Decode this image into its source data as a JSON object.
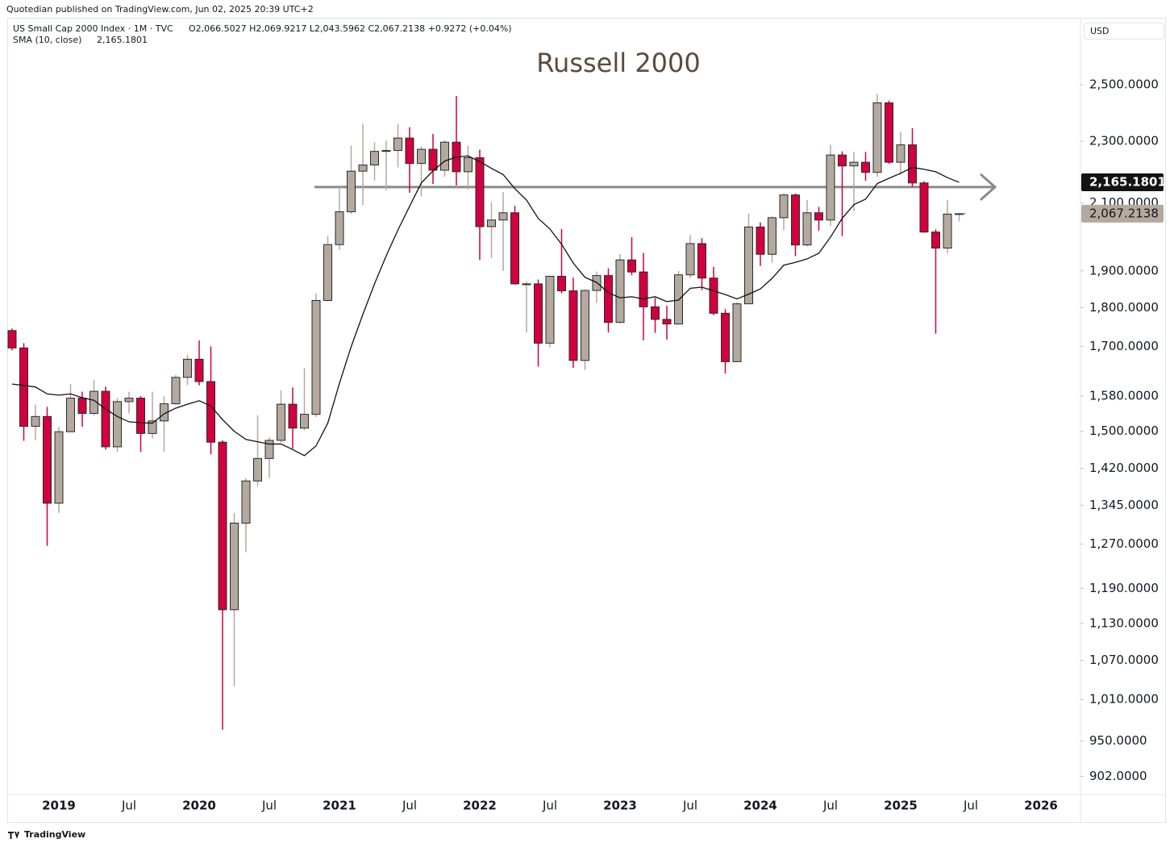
{
  "header": {
    "published": "Quotedian published on TradingView.com, Jun 02, 2025 20:39 UTC+2",
    "symbol": "US Small Cap 2000 Index · 1M · TVC",
    "ohlc_text": "O2,066.5027 H2,069.9217 L2,043.5962 C2,067.2138 +0.9272 (+0.04%)",
    "sma_text": "SMA (10, close)",
    "sma_value_text": "2,165.1801",
    "currency": "USD",
    "brand": "TradingView"
  },
  "chart_data": {
    "type": "candlestick",
    "title": "Russell 2000",
    "log_scale": true,
    "up_color": "#b3a99e",
    "down_color": "#d1003f",
    "sma_color": "#111111",
    "hline_color": "#8a8a8a",
    "categories": [
      null,
      null,
      null,
      null,
      "2019",
      null,
      null,
      null,
      null,
      null,
      "Jul",
      null,
      null,
      null,
      null,
      null,
      "2020",
      null,
      null,
      null,
      null,
      null,
      "Jul",
      null,
      null,
      null,
      null,
      null,
      "2021",
      null,
      null,
      null,
      null,
      null,
      "Jul",
      null,
      null,
      null,
      null,
      null,
      "2022",
      null,
      null,
      null,
      null,
      null,
      "Jul",
      null,
      null,
      null,
      null,
      null,
      "2023",
      null,
      null,
      null,
      null,
      null,
      "Jul",
      null,
      null,
      null,
      null,
      null,
      "2024",
      null,
      null,
      null,
      null,
      null,
      "Jul",
      null,
      null,
      null,
      null,
      null,
      "2025",
      null,
      null,
      null,
      null,
      null,
      "Jul",
      null,
      null,
      null,
      null,
      null,
      "2026"
    ],
    "open": [
      1740,
      1696,
      1511,
      1533,
      1349,
      1499,
      1575,
      1540,
      1591,
      1466,
      1567,
      1575,
      1495,
      1523,
      1562,
      1624,
      1668,
      1614,
      1476,
      1153,
      1310,
      1394,
      1441,
      1480,
      1561,
      1507,
      1538,
      1819,
      1975,
      2073,
      2201,
      2221,
      2266,
      2269,
      2311,
      2226,
      2273,
      2204,
      2297,
      2199,
      2245,
      2028,
      2048,
      2070,
      1864,
      1864,
      1708,
      1885,
      1845,
      1665,
      1846,
      1887,
      1761,
      1931,
      1897,
      1802,
      1769,
      1757,
      1889,
      1978,
      1880,
      1785,
      1662,
      1810,
      2027,
      1947,
      2055,
      2125,
      1974,
      2070,
      2048,
      2254,
      2218,
      2230,
      2197,
      2434,
      2230,
      2288,
      2163,
      2012,
      1965,
      2066.5027,
      null,
      null,
      null,
      null,
      null,
      null,
      null
    ],
    "high": [
      1745,
      1708,
      1560,
      1555,
      1510,
      1608,
      1590,
      1618,
      1602,
      1575,
      1590,
      1580,
      1590,
      1580,
      1630,
      1679,
      1715,
      1700,
      1480,
      1330,
      1400,
      1536,
      1487,
      1593,
      1600,
      1646,
      1838,
      2000,
      2155,
      2285,
      2360,
      2296,
      2302,
      2360,
      2348,
      2283,
      2325,
      2303,
      2459,
      2285,
      2272,
      2102,
      2134,
      2091,
      1870,
      1876,
      1886,
      2021,
      1881,
      1849,
      1898,
      1907,
      1948,
      1997,
      1951,
      1826,
      1805,
      1900,
      2003,
      1994,
      1911,
      1796,
      1814,
      2067,
      2041,
      2059,
      2130,
      2130,
      2109,
      2088,
      2289,
      2266,
      2265,
      2264,
      2466,
      2442,
      2332,
      2345,
      2168,
      2020,
      2110,
      2069.9217,
      null,
      null,
      null,
      null,
      null,
      null,
      null
    ],
    "low": [
      1690,
      1479,
      1480,
      1267,
      1330,
      1498,
      1510,
      1535,
      1460,
      1455,
      1540,
      1455,
      1484,
      1455,
      1560,
      1606,
      1605,
      1450,
      966,
      1030,
      1255,
      1383,
      1400,
      1475,
      1462,
      1502,
      1532,
      1816,
      1960,
      2066,
      2094,
      2170,
      2140,
      2213,
      2132,
      2120,
      2160,
      2183,
      2155,
      2142,
      1931,
      1936,
      1900,
      1862,
      1735,
      1650,
      1698,
      1838,
      1647,
      1642,
      1812,
      1735,
      1759,
      1888,
      1715,
      1734,
      1717,
      1755,
      1880,
      1847,
      1780,
      1633,
      1662,
      1810,
      1914,
      1923,
      2018,
      1942,
      1970,
      2016,
      2030,
      2000,
      2075,
      2170,
      2183,
      2225,
      2190,
      2150,
      2010,
      1732,
      1950,
      2043.5962,
      null,
      null,
      null,
      null,
      null,
      null,
      null
    ],
    "close": [
      1696,
      1511,
      1533,
      1349,
      1499,
      1575,
      1540,
      1591,
      1466,
      1567,
      1575,
      1495,
      1523,
      1562,
      1624,
      1668,
      1614,
      1476,
      1153,
      1310,
      1394,
      1441,
      1480,
      1561,
      1507,
      1538,
      1819,
      1975,
      2073,
      2201,
      2221,
      2266,
      2269,
      2311,
      2226,
      2273,
      2204,
      2297,
      2199,
      2245,
      2028,
      2048,
      2070,
      1864,
      1864,
      1708,
      1885,
      1845,
      1665,
      1846,
      1887,
      1761,
      1931,
      1897,
      1802,
      1769,
      1757,
      1889,
      1978,
      1880,
      1785,
      1662,
      1810,
      2027,
      1947,
      2055,
      2125,
      1974,
      2070,
      2048,
      2254,
      2218,
      2230,
      2197,
      2434,
      2230,
      2288,
      2163,
      2012,
      1965,
      2066,
      2067.2138,
      null,
      null,
      null,
      null,
      null,
      null,
      null
    ],
    "sma": [
      1608,
      1605,
      1601,
      1585,
      1582,
      1585,
      1576,
      1570,
      1550,
      1533,
      1521,
      1519,
      1518,
      1539,
      1552,
      1561,
      1569,
      1557,
      1526,
      1500,
      1482,
      1477,
      1472,
      1472,
      1460,
      1447,
      1468,
      1518,
      1610,
      1699,
      1782,
      1864,
      1943,
      2018,
      2090,
      2163,
      2202,
      2234,
      2247,
      2251,
      2232,
      2210,
      2190,
      2145,
      2109,
      2053,
      2021,
      1976,
      1922,
      1882,
      1868,
      1840,
      1826,
      1829,
      1823,
      1829,
      1816,
      1820,
      1852,
      1855,
      1845,
      1835,
      1823,
      1836,
      1850,
      1879,
      1916,
      1924,
      1934,
      1950,
      1997,
      2053,
      2095,
      2112,
      2161,
      2178,
      2194,
      2213,
      2207,
      2199,
      2180,
      2165.1801,
      null,
      null,
      null,
      null,
      null,
      null,
      null
    ],
    "sma_last_label": "2,165.1801",
    "close_last_label": "2,067.2138",
    "hline": 2150,
    "ylim": [
      878,
      2766
    ],
    "yticks": [
      {
        "value": 2500,
        "label": "2,500.0000"
      },
      {
        "value": 2300,
        "label": "2,300.0000"
      },
      {
        "value": 2100,
        "label": "2,100.0000"
      },
      {
        "value": 1900,
        "label": "1,900.0000"
      },
      {
        "value": 1800,
        "label": "1,800.0000"
      },
      {
        "value": 1700,
        "label": "1,700.0000"
      },
      {
        "value": 1580,
        "label": "1,580.0000"
      },
      {
        "value": 1500,
        "label": "1,500.0000"
      },
      {
        "value": 1420,
        "label": "1,420.0000"
      },
      {
        "value": 1345,
        "label": "1,345.0000"
      },
      {
        "value": 1270,
        "label": "1,270.0000"
      },
      {
        "value": 1190,
        "label": "1,190.0000"
      },
      {
        "value": 1130,
        "label": "1,130.0000"
      },
      {
        "value": 1070,
        "label": "1,070.0000"
      },
      {
        "value": 1010,
        "label": "1,010.0000"
      },
      {
        "value": 950,
        "label": "950.0000"
      },
      {
        "value": 902,
        "label": "902.0000"
      }
    ]
  }
}
